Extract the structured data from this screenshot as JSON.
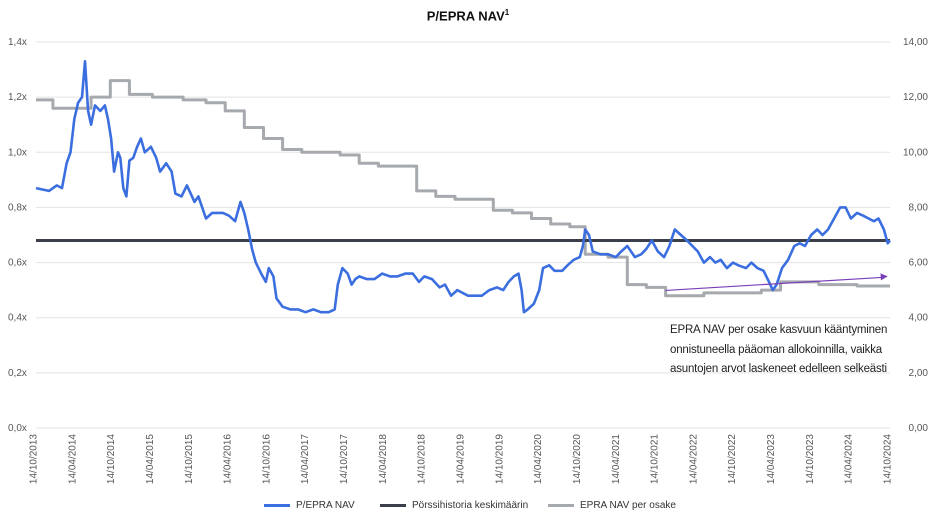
{
  "chart_data": {
    "type": "line",
    "title": "P/EPRA NAV",
    "title_superscript": "1",
    "x_tick_labels": [
      "14/10/2013",
      "14/04/2014",
      "14/10/2014",
      "14/04/2015",
      "14/10/2015",
      "14/04/2016",
      "14/10/2016",
      "14/04/2017",
      "14/10/2017",
      "14/04/2018",
      "14/10/2018",
      "14/04/2019",
      "14/10/2019",
      "14/04/2020",
      "14/10/2020",
      "14/04/2021",
      "14/10/2021",
      "14/04/2022",
      "14/10/2022",
      "14/04/2023",
      "14/10/2023",
      "14/04/2024",
      "14/10/2024"
    ],
    "x_range": [
      2013.78,
      2024.93
    ],
    "y_left": {
      "range": [
        0,
        1.4
      ],
      "ticks": [
        0,
        0.2,
        0.4,
        0.6,
        0.8,
        1.0,
        1.2,
        1.4
      ],
      "tick_labels": [
        "0,0x",
        "0,2x",
        "0,4x",
        "0,6x",
        "0,8x",
        "1,0x",
        "1,2x",
        "1,4x"
      ]
    },
    "y_right": {
      "range": [
        0,
        14
      ],
      "ticks": [
        0,
        2,
        4,
        6,
        8,
        10,
        12,
        14
      ],
      "tick_labels": [
        "0,00",
        "2,00",
        "4,00",
        "6,00",
        "8,00",
        "10,00",
        "12,00",
        "14,00"
      ]
    },
    "series": [
      {
        "name": "P/EPRA NAV",
        "axis": "left",
        "color": "#3b6fe0",
        "points": [
          [
            2013.78,
            0.87
          ],
          [
            2013.95,
            0.86
          ],
          [
            2014.05,
            0.88
          ],
          [
            2014.12,
            0.87
          ],
          [
            2014.18,
            0.96
          ],
          [
            2014.23,
            1.0
          ],
          [
            2014.28,
            1.12
          ],
          [
            2014.33,
            1.18
          ],
          [
            2014.38,
            1.2
          ],
          [
            2014.42,
            1.33
          ],
          [
            2014.46,
            1.15
          ],
          [
            2014.5,
            1.1
          ],
          [
            2014.55,
            1.17
          ],
          [
            2014.62,
            1.15
          ],
          [
            2014.68,
            1.17
          ],
          [
            2014.72,
            1.12
          ],
          [
            2014.76,
            1.05
          ],
          [
            2014.8,
            0.93
          ],
          [
            2014.85,
            1.0
          ],
          [
            2014.88,
            0.98
          ],
          [
            2014.92,
            0.87
          ],
          [
            2014.96,
            0.84
          ],
          [
            2015.0,
            0.97
          ],
          [
            2015.05,
            0.98
          ],
          [
            2015.1,
            1.02
          ],
          [
            2015.15,
            1.05
          ],
          [
            2015.2,
            1.0
          ],
          [
            2015.28,
            1.02
          ],
          [
            2015.35,
            0.98
          ],
          [
            2015.4,
            0.93
          ],
          [
            2015.48,
            0.96
          ],
          [
            2015.55,
            0.93
          ],
          [
            2015.6,
            0.85
          ],
          [
            2015.68,
            0.84
          ],
          [
            2015.75,
            0.88
          ],
          [
            2015.8,
            0.85
          ],
          [
            2015.85,
            0.82
          ],
          [
            2015.9,
            0.84
          ],
          [
            2015.95,
            0.8
          ],
          [
            2016.0,
            0.76
          ],
          [
            2016.08,
            0.78
          ],
          [
            2016.15,
            0.78
          ],
          [
            2016.22,
            0.78
          ],
          [
            2016.3,
            0.77
          ],
          [
            2016.38,
            0.75
          ],
          [
            2016.45,
            0.82
          ],
          [
            2016.5,
            0.78
          ],
          [
            2016.55,
            0.72
          ],
          [
            2016.6,
            0.65
          ],
          [
            2016.65,
            0.6
          ],
          [
            2016.72,
            0.56
          ],
          [
            2016.78,
            0.53
          ],
          [
            2016.82,
            0.58
          ],
          [
            2016.88,
            0.55
          ],
          [
            2016.92,
            0.47
          ],
          [
            2017.0,
            0.44
          ],
          [
            2017.1,
            0.43
          ],
          [
            2017.2,
            0.43
          ],
          [
            2017.3,
            0.42
          ],
          [
            2017.4,
            0.43
          ],
          [
            2017.5,
            0.42
          ],
          [
            2017.6,
            0.42
          ],
          [
            2017.68,
            0.43
          ],
          [
            2017.72,
            0.52
          ],
          [
            2017.78,
            0.58
          ],
          [
            2017.85,
            0.56
          ],
          [
            2017.9,
            0.52
          ],
          [
            2017.95,
            0.54
          ],
          [
            2018.0,
            0.55
          ],
          [
            2018.1,
            0.54
          ],
          [
            2018.2,
            0.54
          ],
          [
            2018.3,
            0.56
          ],
          [
            2018.4,
            0.55
          ],
          [
            2018.5,
            0.55
          ],
          [
            2018.6,
            0.56
          ],
          [
            2018.7,
            0.56
          ],
          [
            2018.78,
            0.53
          ],
          [
            2018.85,
            0.55
          ],
          [
            2018.95,
            0.54
          ],
          [
            2019.05,
            0.51
          ],
          [
            2019.12,
            0.52
          ],
          [
            2019.2,
            0.48
          ],
          [
            2019.28,
            0.5
          ],
          [
            2019.35,
            0.49
          ],
          [
            2019.42,
            0.48
          ],
          [
            2019.5,
            0.48
          ],
          [
            2019.6,
            0.48
          ],
          [
            2019.7,
            0.5
          ],
          [
            2019.8,
            0.51
          ],
          [
            2019.88,
            0.5
          ],
          [
            2019.95,
            0.53
          ],
          [
            2020.02,
            0.55
          ],
          [
            2020.08,
            0.56
          ],
          [
            2020.12,
            0.5
          ],
          [
            2020.15,
            0.42
          ],
          [
            2020.2,
            0.43
          ],
          [
            2020.28,
            0.45
          ],
          [
            2020.35,
            0.5
          ],
          [
            2020.4,
            0.58
          ],
          [
            2020.48,
            0.59
          ],
          [
            2020.55,
            0.57
          ],
          [
            2020.65,
            0.57
          ],
          [
            2020.72,
            0.59
          ],
          [
            2020.8,
            0.61
          ],
          [
            2020.88,
            0.62
          ],
          [
            2020.92,
            0.66
          ],
          [
            2020.95,
            0.72
          ],
          [
            2021.0,
            0.7
          ],
          [
            2021.05,
            0.64
          ],
          [
            2021.15,
            0.63
          ],
          [
            2021.25,
            0.63
          ],
          [
            2021.35,
            0.62
          ],
          [
            2021.42,
            0.64
          ],
          [
            2021.5,
            0.66
          ],
          [
            2021.6,
            0.62
          ],
          [
            2021.68,
            0.63
          ],
          [
            2021.75,
            0.65
          ],
          [
            2021.82,
            0.68
          ],
          [
            2021.9,
            0.64
          ],
          [
            2021.98,
            0.62
          ],
          [
            2022.05,
            0.66
          ],
          [
            2022.12,
            0.72
          ],
          [
            2022.2,
            0.7
          ],
          [
            2022.28,
            0.68
          ],
          [
            2022.35,
            0.66
          ],
          [
            2022.42,
            0.64
          ],
          [
            2022.5,
            0.6
          ],
          [
            2022.58,
            0.62
          ],
          [
            2022.65,
            0.6
          ],
          [
            2022.72,
            0.61
          ],
          [
            2022.8,
            0.58
          ],
          [
            2022.88,
            0.6
          ],
          [
            2022.95,
            0.59
          ],
          [
            2023.05,
            0.58
          ],
          [
            2023.12,
            0.6
          ],
          [
            2023.2,
            0.58
          ],
          [
            2023.28,
            0.57
          ],
          [
            2023.35,
            0.53
          ],
          [
            2023.4,
            0.5
          ],
          [
            2023.45,
            0.52
          ],
          [
            2023.52,
            0.58
          ],
          [
            2023.6,
            0.61
          ],
          [
            2023.68,
            0.66
          ],
          [
            2023.75,
            0.67
          ],
          [
            2023.82,
            0.66
          ],
          [
            2023.9,
            0.7
          ],
          [
            2023.98,
            0.72
          ],
          [
            2024.05,
            0.7
          ],
          [
            2024.12,
            0.72
          ],
          [
            2024.2,
            0.76
          ],
          [
            2024.28,
            0.8
          ],
          [
            2024.35,
            0.8
          ],
          [
            2024.42,
            0.76
          ],
          [
            2024.5,
            0.78
          ],
          [
            2024.58,
            0.77
          ],
          [
            2024.65,
            0.76
          ],
          [
            2024.72,
            0.75
          ],
          [
            2024.78,
            0.76
          ],
          [
            2024.85,
            0.72
          ],
          [
            2024.9,
            0.67
          ],
          [
            2024.93,
            0.68
          ]
        ]
      },
      {
        "name": "Pörssihistoria keskimäärin",
        "axis": "left",
        "color": "#3a3f4a",
        "points": [
          [
            2013.78,
            0.68
          ],
          [
            2024.93,
            0.68
          ]
        ]
      },
      {
        "name": "EPRA NAV per osake",
        "axis": "right",
        "color": "#a6a9ad",
        "points": [
          [
            2013.78,
            11.9
          ],
          [
            2014.0,
            11.9
          ],
          [
            2014.0,
            11.6
          ],
          [
            2014.5,
            11.6
          ],
          [
            2014.5,
            12.0
          ],
          [
            2014.75,
            12.0
          ],
          [
            2014.75,
            12.6
          ],
          [
            2015.0,
            12.6
          ],
          [
            2015.0,
            12.1
          ],
          [
            2015.3,
            12.1
          ],
          [
            2015.3,
            12.0
          ],
          [
            2015.7,
            12.0
          ],
          [
            2015.7,
            11.9
          ],
          [
            2016.0,
            11.9
          ],
          [
            2016.0,
            11.8
          ],
          [
            2016.25,
            11.8
          ],
          [
            2016.25,
            11.5
          ],
          [
            2016.5,
            11.5
          ],
          [
            2016.5,
            10.9
          ],
          [
            2016.75,
            10.9
          ],
          [
            2016.75,
            10.5
          ],
          [
            2017.0,
            10.5
          ],
          [
            2017.0,
            10.1
          ],
          [
            2017.25,
            10.1
          ],
          [
            2017.25,
            10.0
          ],
          [
            2017.75,
            10.0
          ],
          [
            2017.75,
            9.9
          ],
          [
            2018.0,
            9.9
          ],
          [
            2018.0,
            9.6
          ],
          [
            2018.25,
            9.6
          ],
          [
            2018.25,
            9.5
          ],
          [
            2018.75,
            9.5
          ],
          [
            2018.75,
            8.6
          ],
          [
            2019.0,
            8.6
          ],
          [
            2019.0,
            8.4
          ],
          [
            2019.25,
            8.4
          ],
          [
            2019.25,
            8.3
          ],
          [
            2019.75,
            8.3
          ],
          [
            2019.75,
            7.9
          ],
          [
            2020.0,
            7.9
          ],
          [
            2020.0,
            7.8
          ],
          [
            2020.25,
            7.8
          ],
          [
            2020.25,
            7.6
          ],
          [
            2020.5,
            7.6
          ],
          [
            2020.5,
            7.4
          ],
          [
            2020.75,
            7.4
          ],
          [
            2020.75,
            7.3
          ],
          [
            2020.95,
            7.3
          ],
          [
            2020.95,
            6.3
          ],
          [
            2021.25,
            6.3
          ],
          [
            2021.25,
            6.2
          ],
          [
            2021.5,
            6.2
          ],
          [
            2021.5,
            5.2
          ],
          [
            2021.75,
            5.2
          ],
          [
            2021.75,
            5.1
          ],
          [
            2022.0,
            5.1
          ],
          [
            2022.0,
            4.8
          ],
          [
            2022.5,
            4.8
          ],
          [
            2022.5,
            4.9
          ],
          [
            2023.25,
            4.9
          ],
          [
            2023.25,
            5.0
          ],
          [
            2023.5,
            5.0
          ],
          [
            2023.5,
            5.3
          ],
          [
            2024.0,
            5.3
          ],
          [
            2024.0,
            5.2
          ],
          [
            2024.5,
            5.2
          ],
          [
            2024.5,
            5.15
          ],
          [
            2024.93,
            5.15
          ]
        ]
      }
    ],
    "annotation": {
      "lines": [
        "EPRA NAV per osake kasvuun kääntyminen",
        "onnistuneella pääoman allokoinnilla, vaikka",
        "asuntojen arvot laskeneet edelleen selkeästi"
      ],
      "arrow_color": "#7a3fb8",
      "arrow_from": [
        2022.0,
        4.7
      ],
      "arrow_to": [
        2024.9,
        4.7
      ]
    },
    "legend_placement": "bottom",
    "grid": true
  }
}
